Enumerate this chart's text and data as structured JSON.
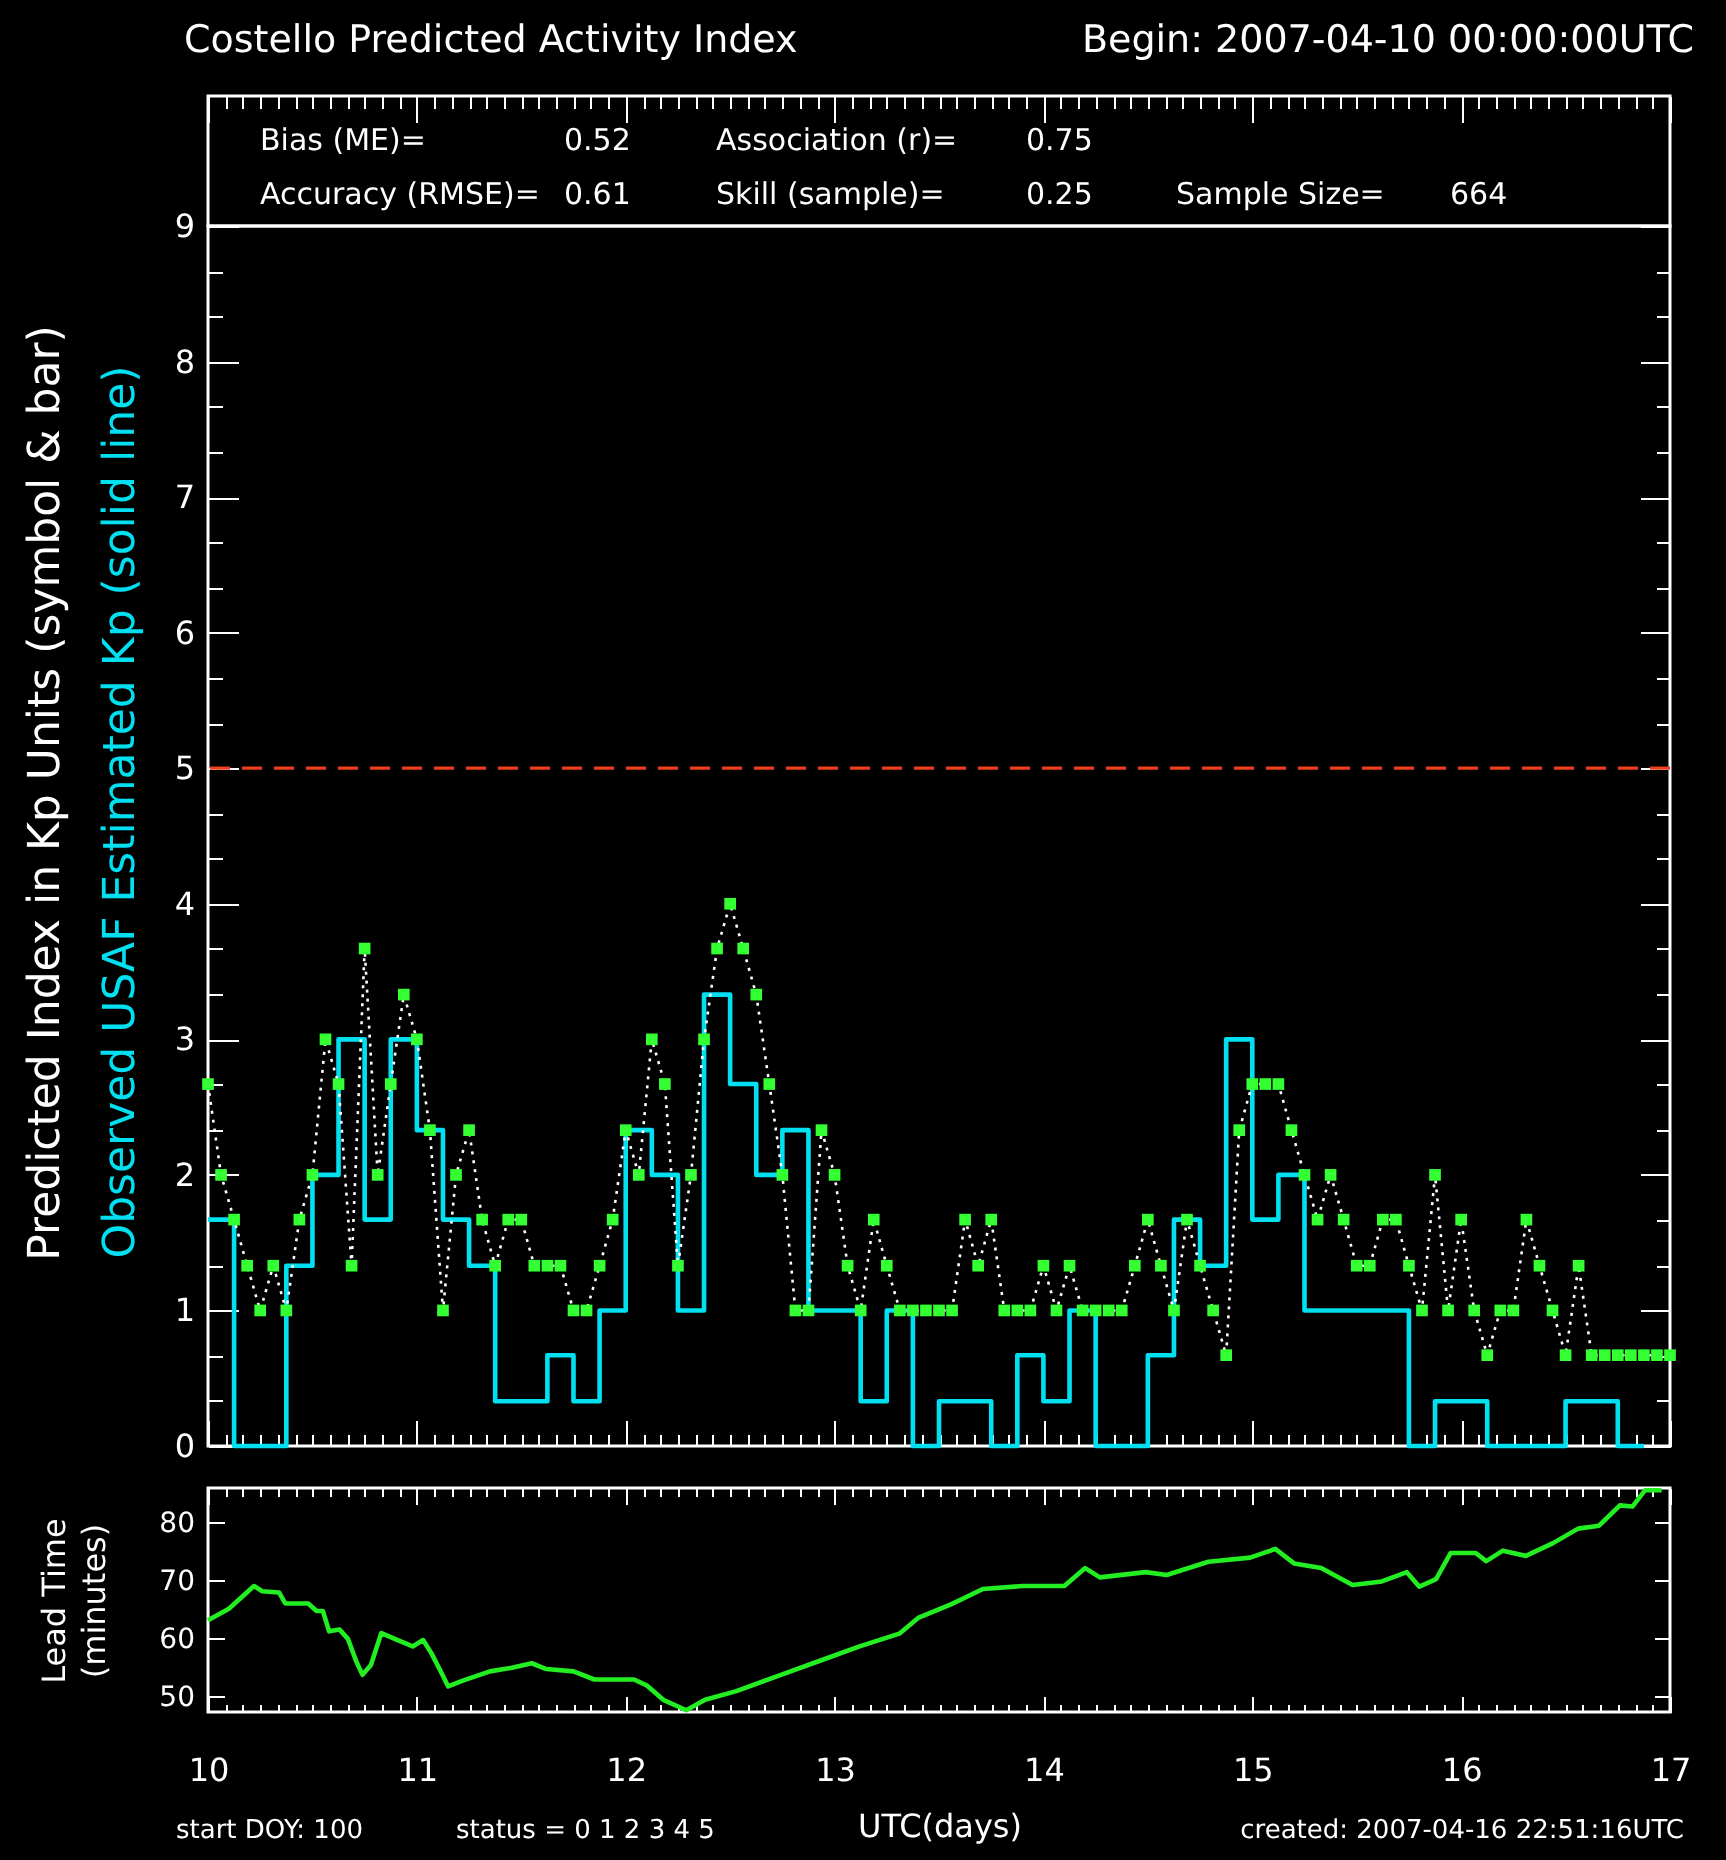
{
  "chart_data": [
    {
      "type": "step",
      "title": "Costello Predicted Activity Index",
      "subtitle": "Begin: 2007-04-10 00:00:00UTC",
      "ylabel": "Predicted Index in Kp Units (symbol & bar)",
      "annotations": [
        "Bias (ME)=",
        "0.52",
        "Association (r)=",
        "0.75",
        "Accuracy (RMSE)=",
        "0.61",
        "Skill (sample)=",
        "0.25",
        "Sample Size=",
        "664"
      ],
      "x": [
        10,
        10.0625,
        10.125,
        10.1875,
        10.25,
        10.3125,
        10.375,
        10.4375,
        10.5,
        10.5625,
        10.625,
        10.6875,
        10.75,
        10.8125,
        10.875,
        10.9375,
        11,
        11.0625,
        11.125,
        11.1875,
        11.25,
        11.3125,
        11.375,
        11.4375,
        11.5,
        11.5625,
        11.625,
        11.6875,
        11.75,
        11.8125,
        11.875,
        11.9375,
        12,
        12.0625,
        12.125,
        12.1875,
        12.25,
        12.3125,
        12.375,
        12.4375,
        12.5,
        12.5625,
        12.625,
        12.6875,
        12.75,
        12.8125,
        12.875,
        12.9375,
        13,
        13.0625,
        13.125,
        13.1875,
        13.25,
        13.3125,
        13.375,
        13.4375,
        13.5,
        13.5625,
        13.625,
        13.6875,
        13.75,
        13.8125,
        13.875,
        13.9375,
        14,
        14.0625,
        14.125,
        14.1875,
        14.25,
        14.3125,
        14.375,
        14.4375,
        14.5,
        14.5625,
        14.625,
        14.6875,
        14.75,
        14.8125,
        14.875,
        14.9375,
        15,
        15.0625,
        15.125,
        15.1875,
        15.25,
        15.3125,
        15.375,
        15.4375,
        15.5,
        15.5625,
        15.625,
        15.6875,
        15.75,
        15.8125,
        15.875,
        15.9375,
        16,
        16.0625,
        16.125,
        16.1875,
        16.25,
        16.3125,
        16.375,
        16.4375,
        16.5,
        16.5625,
        16.625,
        16.6875,
        16.75,
        16.8125,
        16.875,
        16.9375,
        17
      ],
      "series": [
        {
          "name": "Observed USAF Estimated Kp (solid line)",
          "color": "#00e0f0",
          "x": [
            10,
            10.125,
            10.25,
            10.375,
            10.5,
            10.625,
            10.75,
            10.875,
            11,
            11.125,
            11.25,
            11.375,
            11.5,
            11.625,
            11.75,
            11.875,
            12,
            12.125,
            12.25,
            12.375,
            12.5,
            12.625,
            12.75,
            12.875,
            13,
            13.125,
            13.25,
            13.375,
            13.5,
            13.625,
            13.75,
            13.875,
            14,
            14.125,
            14.25,
            14.375,
            14.5,
            14.625,
            14.75,
            14.875,
            15,
            15.125,
            15.25,
            15.375,
            15.5,
            15.625,
            15.75,
            15.875,
            16,
            16.125,
            16.25,
            16.375,
            16.5,
            16.625,
            16.75,
            16.875
          ],
          "values": [
            1.67,
            0,
            0,
            1.33,
            2,
            3,
            1.67,
            3,
            2.33,
            1.67,
            1.33,
            0.33,
            0.33,
            0.67,
            0.33,
            1,
            2.33,
            2,
            1,
            3.33,
            2.67,
            2,
            2.33,
            1,
            1,
            0.33,
            1,
            0,
            0.33,
            0.33,
            0,
            0.67,
            0.33,
            1,
            0,
            0,
            0.67,
            1.67,
            1.33,
            3,
            1.67,
            2,
            1,
            1,
            1,
            1,
            0,
            0.33,
            0.33,
            0,
            0,
            0,
            0.33,
            0.33,
            0,
            0
          ]
        },
        {
          "type": "line",
          "color": "#ffffff",
          "line_style": "dotted",
          "values": [
            2.67,
            2,
            1.67,
            1.33,
            1,
            1.33,
            1,
            1.67,
            2,
            3,
            2.67,
            1.33,
            3.67,
            2,
            2.67,
            3.33,
            3,
            2.33,
            1,
            2,
            2.33,
            1.67,
            1.33,
            1.67,
            1.67,
            1.33,
            1.33,
            1.33,
            1,
            1,
            1.33,
            1.67,
            2.33,
            2,
            3,
            2.67,
            1.33,
            2,
            3,
            3.67,
            4,
            3.67,
            3.33,
            2.67,
            2,
            1,
            1,
            2.33,
            2,
            1.33,
            1,
            1.67,
            1.33,
            1,
            1,
            1,
            1,
            1,
            1.67,
            1.33,
            1.67,
            1,
            1,
            1,
            1.33,
            1,
            1.33,
            1,
            1,
            1,
            1,
            1.33,
            1.67,
            1.33,
            1,
            1.67,
            1.33,
            1,
            0.67,
            2.33,
            2.67,
            2.67,
            2.67,
            2.33,
            2,
            1.67,
            2,
            1.67,
            1.33,
            1.33,
            1.67,
            1.67,
            1.33,
            1,
            2,
            1,
            1.67,
            1,
            0.67,
            1,
            1,
            1.67,
            1.33,
            1,
            0.67,
            1.33,
            0.67,
            0.67,
            0.67,
            0.67,
            0.67,
            0.67,
            0.67
          ]
        },
        {
          "type": "scatter",
          "color": "#33ff33",
          "marker": "square",
          "values": [
            2.67,
            2,
            1.67,
            1.33,
            1,
            1.33,
            1,
            1.67,
            2,
            3,
            2.67,
            1.33,
            3.67,
            2,
            2.67,
            3.33,
            3,
            2.33,
            1,
            2,
            2.33,
            1.67,
            1.33,
            1.67,
            1.67,
            1.33,
            1.33,
            1.33,
            1,
            1,
            1.33,
            1.67,
            2.33,
            2,
            3,
            2.67,
            1.33,
            2,
            3,
            3.67,
            4,
            3.67,
            3.33,
            2.67,
            2,
            1,
            1,
            2.33,
            2,
            1.33,
            1,
            1.67,
            1.33,
            1,
            1,
            1,
            1,
            1,
            1.67,
            1.33,
            1.67,
            1,
            1,
            1,
            1.33,
            1,
            1.33,
            1,
            1,
            1,
            1,
            1.33,
            1.67,
            1.33,
            1,
            1.67,
            1.33,
            1,
            0.67,
            2.33,
            2.67,
            2.67,
            2.67,
            2.33,
            2,
            1.67,
            2,
            1.67,
            1.33,
            1.33,
            1.67,
            1.67,
            1.33,
            1,
            2,
            1,
            1.67,
            1,
            0.67,
            1,
            1,
            1.67,
            1.33,
            1,
            0.67,
            1.33,
            0.67,
            0.67,
            0.67,
            0.67,
            0.67,
            0.67,
            0.67
          ]
        }
      ],
      "xlim": [
        10,
        17
      ],
      "xticks": [
        10,
        {
          "value": 10.0833,
          "label": null
        },
        {
          "value": 10.1667,
          "label": null
        },
        {
          "value": 10.25,
          "label": null
        },
        {
          "value": 10.3333,
          "label": null
        },
        {
          "value": 10.4167,
          "label": null
        },
        {
          "value": 10.5,
          "label": null
        },
        {
          "value": 10.5833,
          "label": null
        },
        {
          "value": 10.6667,
          "label": null
        },
        {
          "value": 10.75,
          "label": null
        },
        {
          "value": 10.8333,
          "label": null
        },
        {
          "value": 10.9167,
          "label": null
        },
        11,
        {
          "value": 11.0833,
          "label": null
        },
        {
          "value": 11.1667,
          "label": null
        },
        {
          "value": 11.25,
          "label": null
        },
        {
          "value": 11.3333,
          "label": null
        },
        {
          "value": 11.4167,
          "label": null
        },
        {
          "value": 11.5,
          "label": null
        },
        {
          "value": 11.5833,
          "label": null
        },
        {
          "value": 11.6667,
          "label": null
        },
        {
          "value": 11.75,
          "label": null
        },
        {
          "value": 11.8333,
          "label": null
        },
        {
          "value": 11.9167,
          "label": null
        },
        12,
        {
          "value": 12.0833,
          "label": null
        },
        {
          "value": 12.1667,
          "label": null
        },
        {
          "value": 12.25,
          "label": null
        },
        {
          "value": 12.3333,
          "label": null
        },
        {
          "value": 12.4167,
          "label": null
        },
        {
          "value": 12.5,
          "label": null
        },
        {
          "value": 12.5833,
          "label": null
        },
        {
          "value": 12.6667,
          "label": null
        },
        {
          "value": 12.75,
          "label": null
        },
        {
          "value": 12.8333,
          "label": null
        },
        {
          "value": 12.9167,
          "label": null
        },
        13,
        {
          "value": 13.0833,
          "label": null
        },
        {
          "value": 13.1667,
          "label": null
        },
        {
          "value": 13.25,
          "label": null
        },
        {
          "value": 13.3333,
          "label": null
        },
        {
          "value": 13.4167,
          "label": null
        },
        {
          "value": 13.5,
          "label": null
        },
        {
          "value": 13.5833,
          "label": null
        },
        {
          "value": 13.6667,
          "label": null
        },
        {
          "value": 13.75,
          "label": null
        },
        {
          "value": 13.8333,
          "label": null
        },
        {
          "value": 13.9167,
          "label": null
        },
        14,
        {
          "value": 14.0833,
          "label": null
        },
        {
          "value": 14.1667,
          "label": null
        },
        {
          "value": 14.25,
          "label": null
        },
        {
          "value": 14.3333,
          "label": null
        },
        {
          "value": 14.4167,
          "label": null
        },
        {
          "value": 14.5,
          "label": null
        },
        {
          "value": 14.5833,
          "label": null
        },
        {
          "value": 14.6667,
          "label": null
        },
        {
          "value": 14.75,
          "label": null
        },
        {
          "value": 14.8333,
          "label": null
        },
        {
          "value": 14.9167,
          "label": null
        },
        15,
        {
          "value": 15.0833,
          "label": null
        },
        {
          "value": 15.1667,
          "label": null
        },
        {
          "value": 15.25,
          "label": null
        },
        {
          "value": 15.3333,
          "label": null
        },
        {
          "value": 15.4167,
          "label": null
        },
        {
          "value": 15.5,
          "label": null
        },
        {
          "value": 15.5833,
          "label": null
        },
        {
          "value": 15.6667,
          "label": null
        },
        {
          "value": 15.75,
          "label": null
        },
        {
          "value": 15.8333,
          "label": null
        },
        {
          "value": 15.9167,
          "label": null
        },
        16,
        {
          "value": 16.0833,
          "label": null
        },
        {
          "value": 16.1667,
          "label": null
        },
        {
          "value": 16.25,
          "label": null
        },
        {
          "value": 16.3333,
          "label": null
        },
        {
          "value": 16.4167,
          "label": null
        },
        {
          "value": 16.5,
          "label": null
        },
        {
          "value": 16.5833,
          "label": null
        },
        {
          "value": 16.6667,
          "label": null
        },
        {
          "value": 16.75,
          "label": null
        },
        {
          "value": 16.8333,
          "label": null
        },
        {
          "value": 16.9167,
          "label": null
        },
        17
      ],
      "ylim": [
        0,
        9
      ],
      "yticks": [
        0,
        {
          "value": 0.3333,
          "label": null
        },
        {
          "value": 0.6667,
          "label": null
        },
        1,
        {
          "value": 1.3333,
          "label": null
        },
        {
          "value": 1.6667,
          "label": null
        },
        2,
        {
          "value": 2.3333,
          "label": null
        },
        {
          "value": 2.6667,
          "label": null
        },
        3,
        {
          "value": 3.3333,
          "label": null
        },
        {
          "value": 3.6667,
          "label": null
        },
        4,
        {
          "value": 4.3333,
          "label": null
        },
        {
          "value": 4.6667,
          "label": null
        },
        5,
        {
          "value": 5.3333,
          "label": null
        },
        {
          "value": 5.6667,
          "label": null
        },
        6,
        {
          "value": 6.3333,
          "label": null
        },
        {
          "value": 6.6667,
          "label": null
        },
        7,
        {
          "value": 7.3333,
          "label": null
        },
        {
          "value": 7.6667,
          "label": null
        },
        8,
        {
          "value": 8.3333,
          "label": null
        },
        {
          "value": 8.6667,
          "label": null
        },
        9
      ],
      "tick_labels": "y",
      "ref_lines": [
        {
          "axis": "y",
          "value": 5,
          "color": "#f0401e",
          "line_style": "dashed"
        }
      ]
    },
    {
      "type": "line",
      "xlabel": "UTC(days)",
      "ylabel": "Lead Time (minutes)",
      "annotations": [
        "start DOY: 100",
        "status = 0 1 2 3 4 5",
        "created: 2007-04-16 22:51:16UTC"
      ],
      "x": [
        10,
        10.1,
        10.22,
        10.26,
        10.34,
        10.37,
        10.48,
        10.52,
        10.55,
        10.58,
        10.63,
        10.67,
        10.71,
        10.74,
        10.78,
        10.83,
        10.9,
        10.98,
        11.03,
        11.07,
        11.12,
        11.15,
        11.22,
        11.35,
        11.45,
        11.55,
        11.62,
        11.75,
        11.85,
        12.04,
        12.1,
        12.18,
        12.29,
        12.38,
        12.53,
        12.72,
        12.92,
        13.12,
        13.31,
        13.4,
        13.56,
        13.71,
        13.9,
        14.1,
        14.2,
        14.27,
        14.49,
        14.59,
        14.79,
        14.99,
        15.11,
        15.2,
        15.33,
        15.48,
        15.62,
        15.74,
        15.8,
        15.88,
        15.95,
        16.07,
        16.12,
        16.2,
        16.31,
        16.44,
        16.56,
        16.66,
        16.76,
        16.82,
        16.88,
        16.96
      ],
      "series": [
        {
          "color": "#22ee22",
          "values": [
            63.2,
            65.2,
            69.1,
            68.2,
            68.0,
            66.1,
            66.1,
            64.8,
            64.8,
            61.3,
            61.6,
            60.0,
            56.1,
            53.8,
            55.5,
            61.0,
            59.9,
            58.7,
            59.8,
            57.5,
            54.0,
            51.8,
            52.8,
            54.4,
            55.0,
            55.8,
            54.8,
            54.4,
            53.0,
            53.0,
            52.0,
            49.5,
            47.7,
            49.5,
            51.0,
            53.5,
            56.1,
            58.7,
            60.9,
            63.6,
            66.0,
            68.6,
            69.1,
            69.1,
            72.2,
            70.6,
            71.5,
            71.0,
            73.3,
            74.0,
            75.5,
            73.0,
            72.2,
            69.3,
            69.9,
            71.5,
            69.0,
            70.3,
            74.8,
            74.8,
            73.4,
            75.2,
            74.3,
            76.5,
            79.0,
            79.5,
            83.0,
            82.8,
            85.6,
            85.6
          ]
        }
      ],
      "xlim": [
        10,
        17
      ],
      "xticks": [
        10,
        {
          "value": 10.0833,
          "label": null
        },
        {
          "value": 10.1667,
          "label": null
        },
        {
          "value": 10.25,
          "label": null
        },
        {
          "value": 10.3333,
          "label": null
        },
        {
          "value": 10.4167,
          "label": null
        },
        {
          "value": 10.5,
          "label": null
        },
        {
          "value": 10.5833,
          "label": null
        },
        {
          "value": 10.6667,
          "label": null
        },
        {
          "value": 10.75,
          "label": null
        },
        {
          "value": 10.8333,
          "label": null
        },
        {
          "value": 10.9167,
          "label": null
        },
        11,
        {
          "value": 11.0833,
          "label": null
        },
        {
          "value": 11.1667,
          "label": null
        },
        {
          "value": 11.25,
          "label": null
        },
        {
          "value": 11.3333,
          "label": null
        },
        {
          "value": 11.4167,
          "label": null
        },
        {
          "value": 11.5,
          "label": null
        },
        {
          "value": 11.5833,
          "label": null
        },
        {
          "value": 11.6667,
          "label": null
        },
        {
          "value": 11.75,
          "label": null
        },
        {
          "value": 11.8333,
          "label": null
        },
        {
          "value": 11.9167,
          "label": null
        },
        12,
        {
          "value": 12.0833,
          "label": null
        },
        {
          "value": 12.1667,
          "label": null
        },
        {
          "value": 12.25,
          "label": null
        },
        {
          "value": 12.3333,
          "label": null
        },
        {
          "value": 12.4167,
          "label": null
        },
        {
          "value": 12.5,
          "label": null
        },
        {
          "value": 12.5833,
          "label": null
        },
        {
          "value": 12.6667,
          "label": null
        },
        {
          "value": 12.75,
          "label": null
        },
        {
          "value": 12.8333,
          "label": null
        },
        {
          "value": 12.9167,
          "label": null
        },
        13,
        {
          "value": 13.0833,
          "label": null
        },
        {
          "value": 13.1667,
          "label": null
        },
        {
          "value": 13.25,
          "label": null
        },
        {
          "value": 13.3333,
          "label": null
        },
        {
          "value": 13.4167,
          "label": null
        },
        {
          "value": 13.5,
          "label": null
        },
        {
          "value": 13.5833,
          "label": null
        },
        {
          "value": 13.6667,
          "label": null
        },
        {
          "value": 13.75,
          "label": null
        },
        {
          "value": 13.8333,
          "label": null
        },
        {
          "value": 13.9167,
          "label": null
        },
        14,
        {
          "value": 14.0833,
          "label": null
        },
        {
          "value": 14.1667,
          "label": null
        },
        {
          "value": 14.25,
          "label": null
        },
        {
          "value": 14.3333,
          "label": null
        },
        {
          "value": 14.4167,
          "label": null
        },
        {
          "value": 14.5,
          "label": null
        },
        {
          "value": 14.5833,
          "label": null
        },
        {
          "value": 14.6667,
          "label": null
        },
        {
          "value": 14.75,
          "label": null
        },
        {
          "value": 14.8333,
          "label": null
        },
        {
          "value": 14.9167,
          "label": null
        },
        15,
        {
          "value": 15.0833,
          "label": null
        },
        {
          "value": 15.1667,
          "label": null
        },
        {
          "value": 15.25,
          "label": null
        },
        {
          "value": 15.3333,
          "label": null
        },
        {
          "value": 15.4167,
          "label": null
        },
        {
          "value": 15.5,
          "label": null
        },
        {
          "value": 15.5833,
          "label": null
        },
        {
          "value": 15.6667,
          "label": null
        },
        {
          "value": 15.75,
          "label": null
        },
        {
          "value": 15.8333,
          "label": null
        },
        {
          "value": 15.9167,
          "label": null
        },
        16,
        {
          "value": 16.0833,
          "label": null
        },
        {
          "value": 16.1667,
          "label": null
        },
        {
          "value": 16.25,
          "label": null
        },
        {
          "value": 16.3333,
          "label": null
        },
        {
          "value": 16.4167,
          "label": null
        },
        {
          "value": 16.5,
          "label": null
        },
        {
          "value": 16.5833,
          "label": null
        },
        {
          "value": 16.6667,
          "label": null
        },
        {
          "value": 16.75,
          "label": null
        },
        {
          "value": 16.8333,
          "label": null
        },
        {
          "value": 16.9167,
          "label": null
        },
        17
      ],
      "ylim": [
        47.4,
        86
      ],
      "yticks": [
        50,
        60,
        70,
        80
      ]
    }
  ]
}
